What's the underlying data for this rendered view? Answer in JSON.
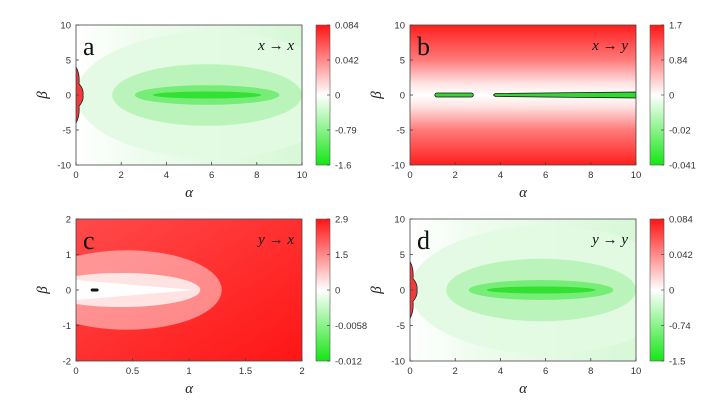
{
  "chart_data": [
    {
      "type": "heatmap",
      "panel_label": "a",
      "mapping_label": "x → x",
      "xlabel": "α",
      "ylabel": "β",
      "xlim": [
        0,
        10
      ],
      "ylim": [
        -10,
        10
      ],
      "x_ticks": [
        "0",
        "2",
        "4",
        "6",
        "8",
        "10"
      ],
      "y_ticks": [
        "10",
        "5",
        "0",
        "-5",
        "-10"
      ],
      "colorbar_ticks": [
        "0.084",
        "0.042",
        "0",
        "-0.79",
        "-1.6"
      ],
      "colorbar_max": 0.084,
      "colorbar_min": -1.6,
      "positive_color": "#ff1a1a",
      "negative_color": "#1fe61f",
      "background": "mostly light green (negative) with deepest green band along β=0 centered near α≈6; small red contour region near α=0"
    },
    {
      "type": "heatmap",
      "panel_label": "b",
      "mapping_label": "x → y",
      "xlabel": "α",
      "ylabel": "β",
      "xlim": [
        0,
        10
      ],
      "ylim": [
        -10,
        10
      ],
      "x_ticks": [
        "0",
        "2",
        "4",
        "6",
        "8",
        "10"
      ],
      "y_ticks": [
        "10",
        "5",
        "0",
        "-5",
        "-10"
      ],
      "colorbar_ticks": [
        "1.7",
        "0.84",
        "0",
        "-0.02",
        "-0.041"
      ],
      "colorbar_max": 1.7,
      "colorbar_min": -0.041,
      "positive_color": "#ff1a1a",
      "negative_color": "#1fe61f",
      "background": "red at large |β|, fading to white near β=0; thin green contour strips along β=0 for α≈1–3 and α≈4–10"
    },
    {
      "type": "heatmap",
      "panel_label": "c",
      "mapping_label": "y → x",
      "xlabel": "α",
      "ylabel": "β",
      "xlim": [
        0,
        2
      ],
      "ylim": [
        -2,
        2
      ],
      "x_ticks": [
        "0",
        "0.5",
        "1",
        "1.5",
        "2"
      ],
      "y_ticks": [
        "2",
        "1",
        "0",
        "-1",
        "-2"
      ],
      "colorbar_ticks": [
        "2.9",
        "1.5",
        "0",
        "-0.0058",
        "-0.012"
      ],
      "colorbar_max": 2.9,
      "colorbar_min": -0.012,
      "positive_color": "#ff1a1a",
      "negative_color": "#1fe61f",
      "background": "red everywhere except a white wedge along β=0 for α<1; tiny dark contour near α≈0.15"
    },
    {
      "type": "heatmap",
      "panel_label": "d",
      "mapping_label": "y → y",
      "xlabel": "α",
      "ylabel": "β",
      "xlim": [
        0,
        10
      ],
      "ylim": [
        -10,
        10
      ],
      "x_ticks": [
        "0",
        "2",
        "4",
        "6",
        "8",
        "10"
      ],
      "y_ticks": [
        "10",
        "5",
        "0",
        "-5",
        "-10"
      ],
      "colorbar_ticks": [
        "0.084",
        "0.042",
        "0",
        "-0.74",
        "-1.5"
      ],
      "colorbar_max": 0.084,
      "colorbar_min": -1.5,
      "positive_color": "#ff1a1a",
      "negative_color": "#1fe61f",
      "background": "mostly light green with deepest green band along β=0 centered near α≈6; small red contour region near α=0"
    }
  ]
}
